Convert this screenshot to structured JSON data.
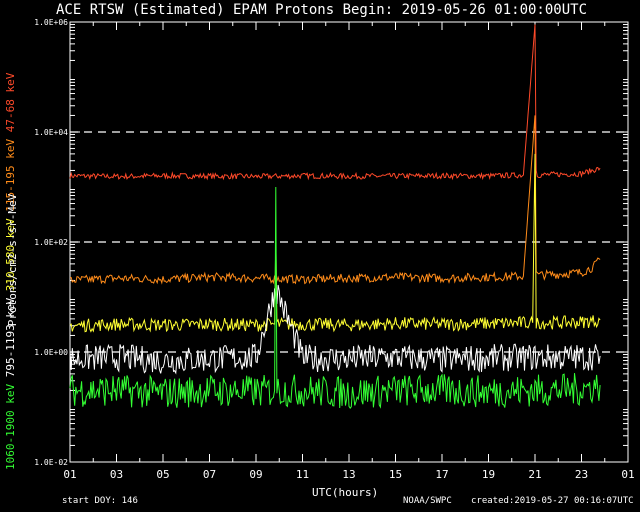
{
  "title": "ACE RTSW (Estimated) EPAM Protons     Begin: 2019-05-26 01:00:00UTC",
  "footer": {
    "start_doy": "start DOY:  146",
    "agency": "NOAA/SWPC",
    "created": "created:2019-05-27 00:16:07UTC"
  },
  "colors": {
    "background": "#000000",
    "axes": "#ffffff",
    "ch_47_68": "#ff4a2a",
    "ch_115_195": "#ff8c1a",
    "ch_310_580": "#ffff33",
    "ch_795_1193": "#ffffff",
    "ch_1060_1900": "#33ff33"
  },
  "chart_data": {
    "type": "line",
    "title": "ACE RTSW (Estimated) EPAM Protons     Begin: 2019-05-26 01:00:00UTC",
    "xlabel": "UTC(hours)",
    "ylabel": "Protons/cm2-s-sr-MeV",
    "yscale": "log",
    "xlim": [
      1,
      25
    ],
    "ylim": [
      0.01,
      1000000
    ],
    "x_ticks": [
      "01",
      "03",
      "05",
      "07",
      "09",
      "11",
      "13",
      "15",
      "17",
      "19",
      "21",
      "23",
      "01"
    ],
    "y_ticks": [
      "1.0E-02",
      "1.0E+00",
      "1.0E+02",
      "1.0E+04",
      "1.0E+06"
    ],
    "gridlines_dashed_at": [
      1,
      100,
      10000
    ],
    "series": [
      {
        "name": "47-68 keV",
        "color": "#ff4a2a",
        "hours": [
          1,
          3,
          5,
          7,
          9,
          11,
          13,
          15,
          17,
          19,
          20.5,
          21.0,
          21.05,
          21.1,
          22,
          23,
          23.8
        ],
        "values": [
          1600,
          1550,
          1600,
          1580,
          1550,
          1600,
          1570,
          1580,
          1600,
          1590,
          1650,
          900000,
          2000,
          1650,
          1700,
          1750,
          2200
        ]
      },
      {
        "name": "115-195 keV",
        "color": "#ff8c1a",
        "hours": [
          1,
          3,
          5,
          7,
          9,
          11,
          13,
          15,
          17,
          19,
          20.5,
          21.0,
          21.05,
          21.1,
          22,
          23,
          23.5,
          23.8
        ],
        "values": [
          20,
          22,
          21,
          23,
          22,
          21,
          22,
          23,
          22,
          23,
          24,
          20000,
          30,
          25,
          26,
          28,
          35,
          48
        ]
      },
      {
        "name": "310-580 keV",
        "color": "#ffff33",
        "hours": [
          1,
          3,
          5,
          7,
          9,
          9.8,
          9.85,
          9.9,
          11,
          13,
          15,
          17,
          19,
          20.9,
          21.0,
          21.05,
          21.1,
          22,
          23,
          23.8
        ],
        "values": [
          3,
          3.2,
          3.1,
          3.2,
          3.1,
          3.2,
          120,
          3.2,
          3.2,
          3.1,
          3.3,
          3.2,
          3.3,
          3.4,
          4000,
          3.5,
          3.4,
          3.4,
          3.5,
          3.8
        ]
      },
      {
        "name": "795-1193 keV",
        "color": "#ffffff",
        "hours": [
          1,
          3,
          5,
          7,
          9,
          9.85,
          11,
          13,
          15,
          17,
          19,
          21,
          23,
          23.8
        ],
        "values": [
          0.75,
          0.8,
          0.7,
          0.75,
          0.8,
          15,
          0.78,
          0.75,
          0.8,
          0.72,
          0.78,
          0.8,
          0.8,
          0.85
        ]
      },
      {
        "name": "1060-1900 keV",
        "color": "#33ff33",
        "hours": [
          1,
          3,
          5,
          7,
          9,
          9.8,
          9.85,
          9.9,
          11,
          13,
          15,
          17,
          19,
          21,
          23,
          23.8
        ],
        "values": [
          0.2,
          0.2,
          0.18,
          0.2,
          0.19,
          0.2,
          1000,
          0.2,
          0.2,
          0.18,
          0.2,
          0.2,
          0.19,
          0.2,
          0.21,
          0.25
        ]
      }
    ]
  }
}
